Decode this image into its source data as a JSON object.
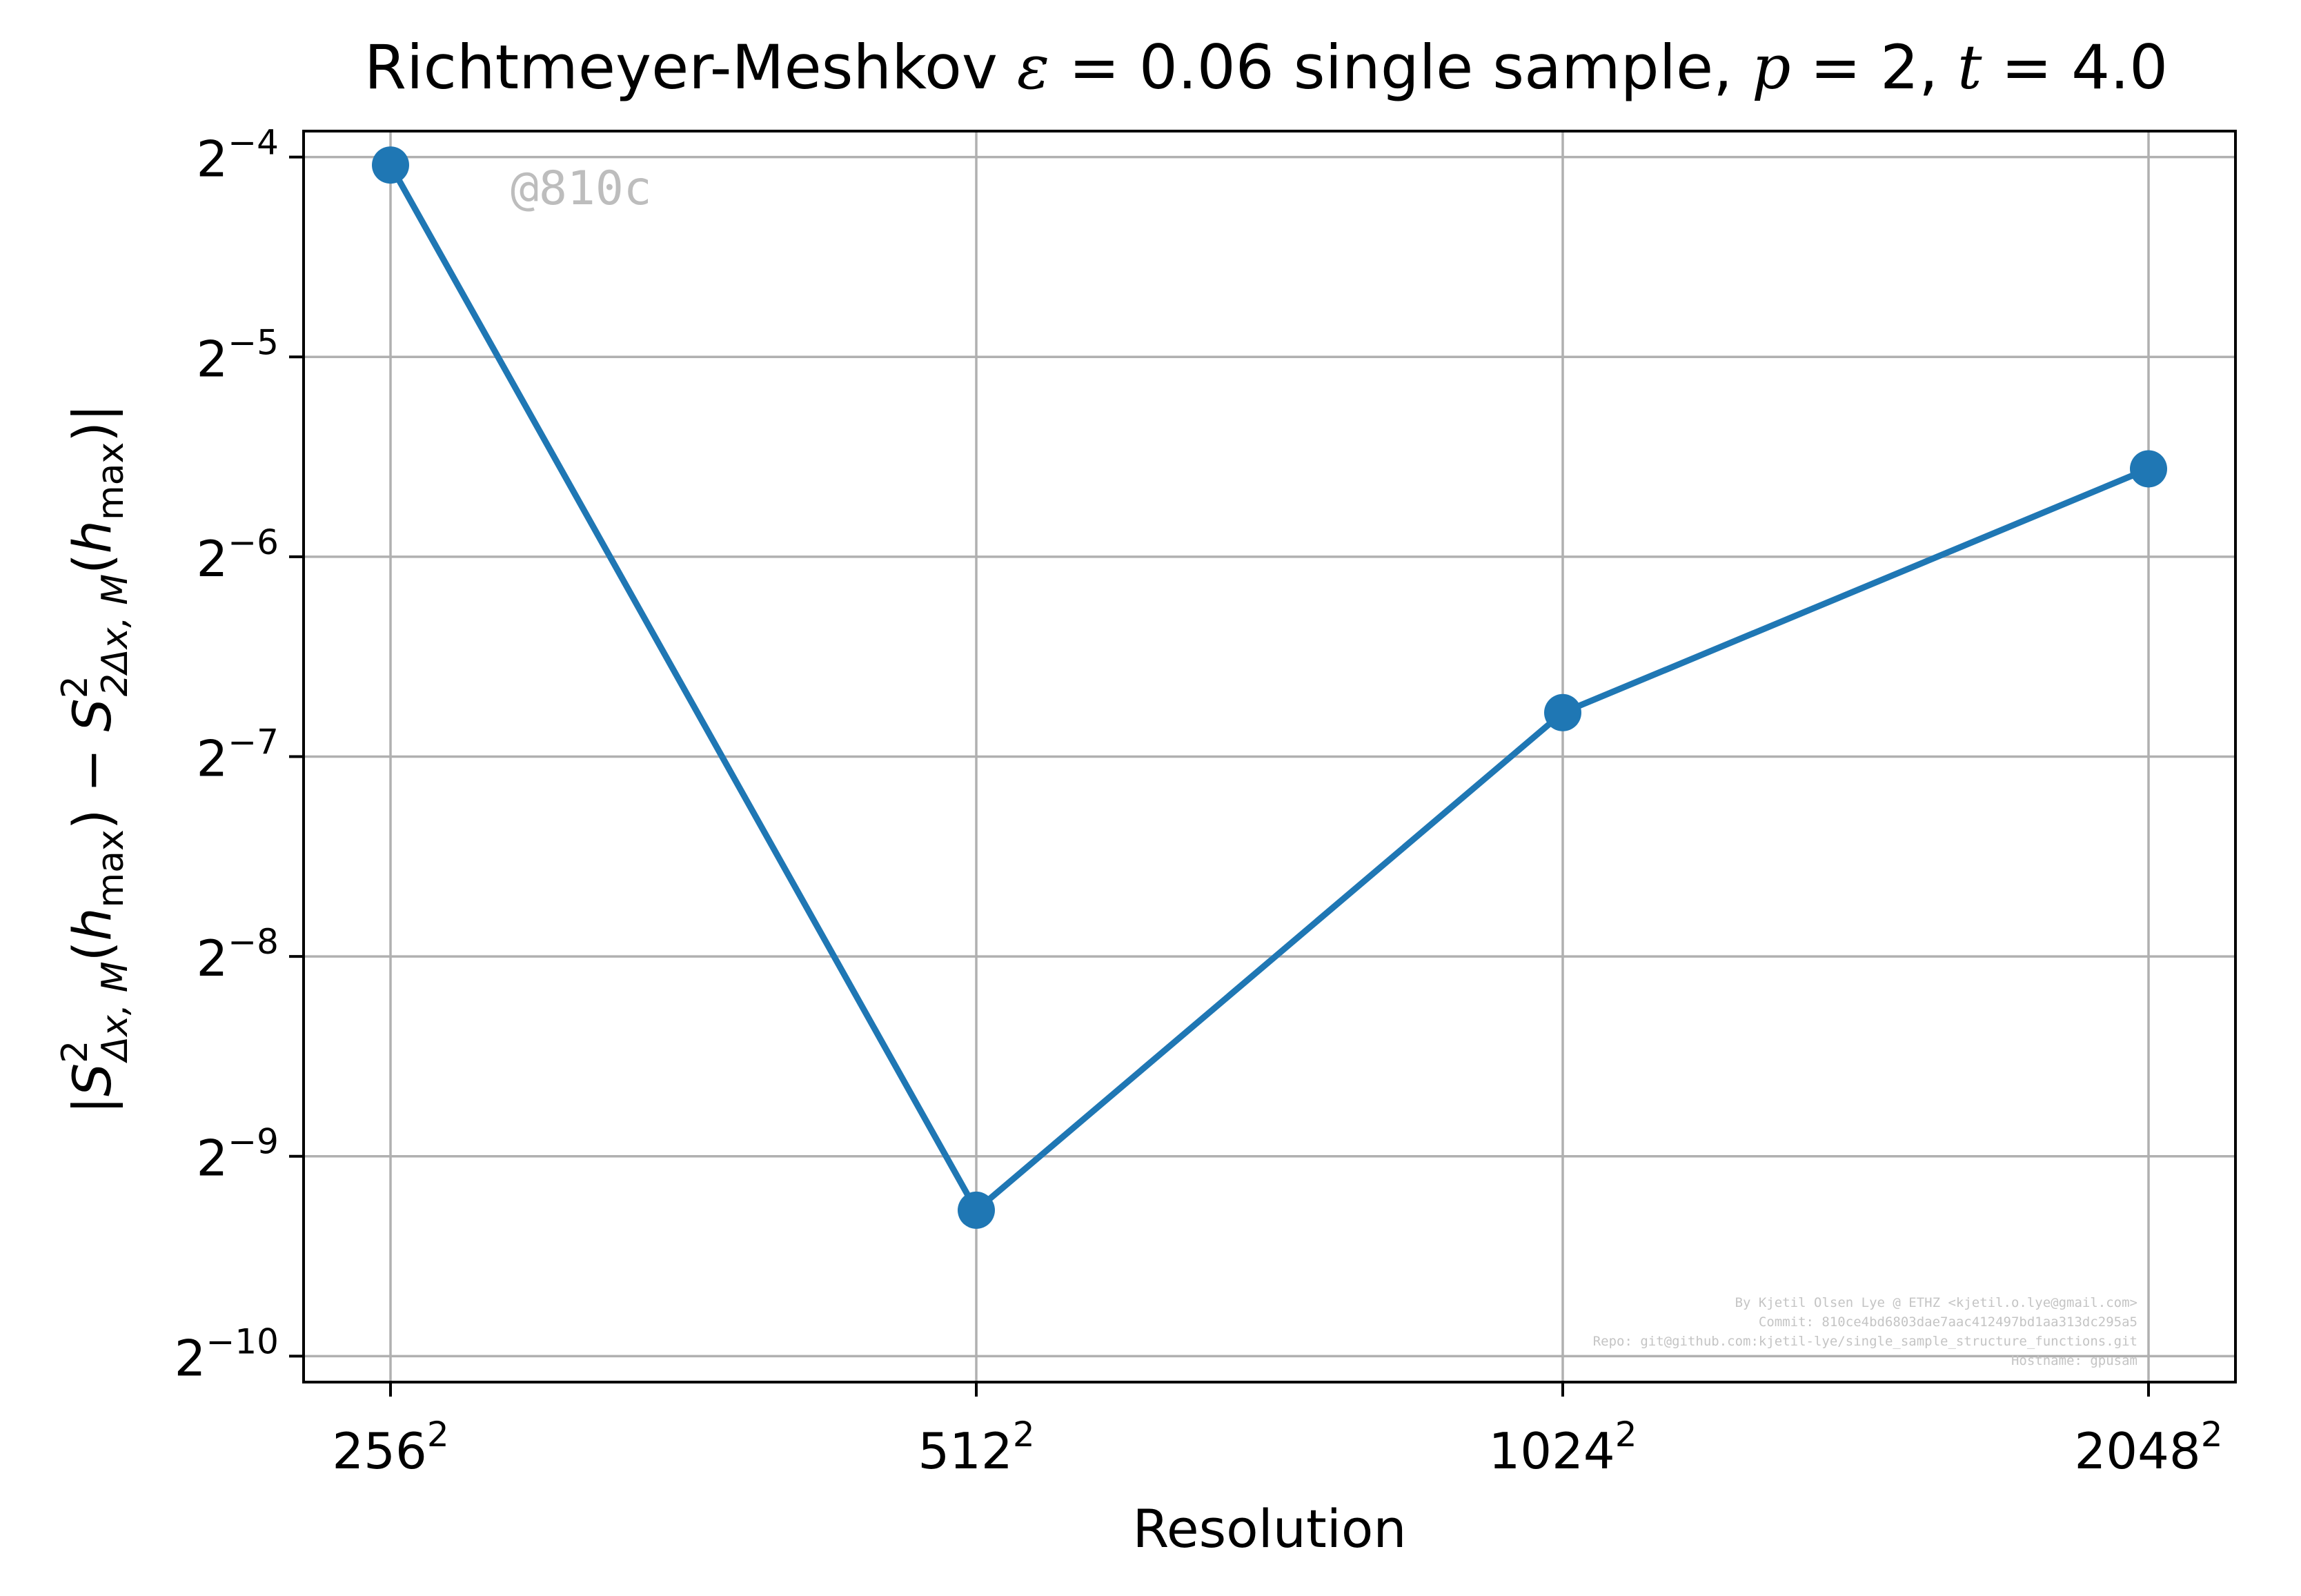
{
  "chart_data": {
    "type": "line",
    "title": "Richtmeyer-Meshkov ε = 0.06 single sample, p = 2, t = 4.0",
    "title_parts": {
      "prefix": "Richtmeyer-Meshkov ",
      "epsilon": "ε",
      "epsilon_value": " = 0.06 single sample, ",
      "p": "p",
      "p_value": " = 2, ",
      "t": "t",
      "t_value": " = 4.0"
    },
    "xlabel": "Resolution",
    "ylabel": "|S²Δx,M(hmax) − S²2Δx,M(hmax)|",
    "ylabel_parts": {
      "bar_open": "|",
      "S1": "S",
      "S1_sup": "2",
      "S1_sub": "Δx, M",
      "arg1_open": "(",
      "h1": "h",
      "h1_sub": "max",
      "arg1_close": ")",
      "minus": " − ",
      "S2": "S",
      "S2_sup": "2",
      "S2_sub": "2Δx, M",
      "arg2_open": "(",
      "h2": "h",
      "h2_sub": "max",
      "arg2_close": ")",
      "bar_close": "|"
    },
    "x_scale": "log2",
    "y_scale": "log2",
    "categories": [
      {
        "base": "256",
        "exp": "2"
      },
      {
        "base": "512",
        "exp": "2"
      },
      {
        "base": "1024",
        "exp": "2"
      },
      {
        "base": "2048",
        "exp": "2"
      }
    ],
    "y_exponents": [
      -4.04,
      -9.27,
      -6.78,
      -5.56
    ],
    "y_ticks": [
      {
        "base": "2",
        "exp": "−4",
        "value": -4
      },
      {
        "base": "2",
        "exp": "−5",
        "value": -5
      },
      {
        "base": "2",
        "exp": "−6",
        "value": -6
      },
      {
        "base": "2",
        "exp": "−7",
        "value": -7
      },
      {
        "base": "2",
        "exp": "−8",
        "value": -8
      },
      {
        "base": "2",
        "exp": "−9",
        "value": -9
      },
      {
        "base": "2",
        "exp": "−10",
        "value": -10
      }
    ],
    "ylim_exponent": [
      -10.13,
      -3.87
    ],
    "grid": true,
    "legend": "none",
    "series_color": "#1f77b4",
    "grid_color": "#b0b0b0",
    "watermark": "@810c",
    "credits": [
      "By Kjetil Olsen Lye @ ETHZ <kjetil.o.lye@gmail.com>",
      "Commit: 810ce4bd6803dae7aac412497bd1aa313dc295a5",
      "Repo: git@github.com:kjetil-lye/single_sample_structure_functions.git",
      "Hostname: gpusam"
    ]
  }
}
